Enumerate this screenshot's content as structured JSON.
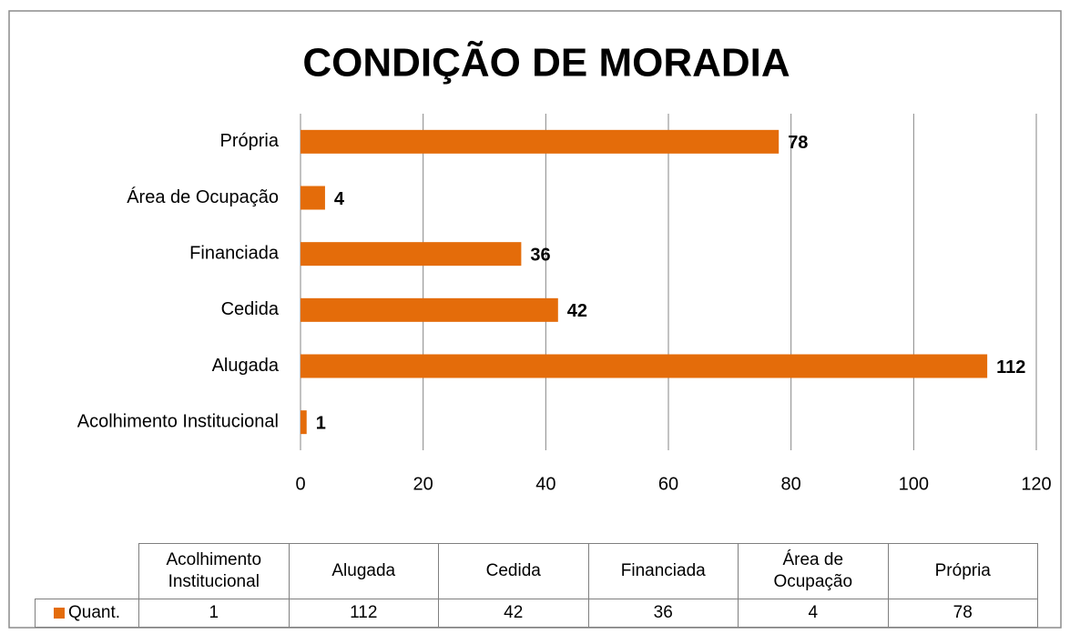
{
  "chart_data": {
    "type": "bar",
    "orientation": "horizontal",
    "title": "CONDIÇÃO DE MORADIA",
    "categories": [
      "Acolhimento Institucional",
      "Alugada",
      "Cedida",
      "Financiada",
      "Área de Ocupação",
      "Própria"
    ],
    "series": [
      {
        "name": "Quant.",
        "color": "#e46c0a",
        "values": [
          1,
          112,
          42,
          36,
          4,
          78
        ]
      }
    ],
    "xlim": [
      0,
      120
    ],
    "xticks": [
      0,
      20,
      40,
      60,
      80,
      100,
      120
    ],
    "grid": true
  }
}
